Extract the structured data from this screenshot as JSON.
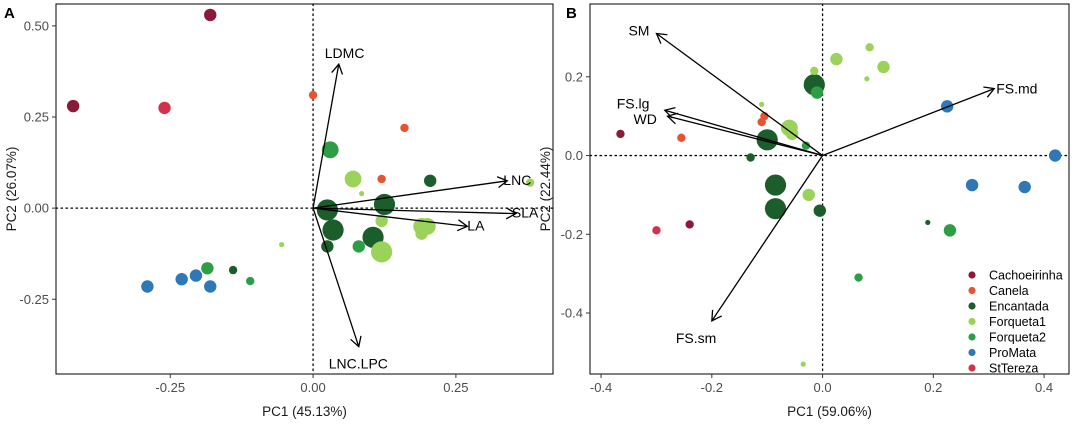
{
  "colors": {
    "Cachoeirinha": "#8B1A3A",
    "Canela": "#E8542F",
    "Encantada": "#1B5E2B",
    "Forqueta1": "#9BD35A",
    "Forqueta2": "#2E9E45",
    "ProMata": "#2E78B8",
    "StTereza": "#D2334A"
  },
  "chart_data": [
    {
      "type": "scatter",
      "panel_label": "A",
      "xlabel": "PC1 (45.13%)",
      "ylabel": "PC2 (26.07%)",
      "xlim": [
        -0.45,
        0.42
      ],
      "ylim": [
        -0.455,
        0.56
      ],
      "xticks": [
        -0.25,
        0.0,
        0.25
      ],
      "xtick_labels": [
        "-0.25",
        "0.00",
        "0.25"
      ],
      "yticks": [
        -0.25,
        0.0,
        0.25,
        0.5
      ],
      "ytick_labels": [
        "-0.25",
        "0.00",
        "0.25",
        "0.50"
      ],
      "vectors": [
        {
          "label": "LDMC",
          "x": 0.045,
          "y": 0.395
        },
        {
          "label": "LNC",
          "x": 0.34,
          "y": 0.075
        },
        {
          "label": "SLA",
          "x": 0.355,
          "y": -0.015
        },
        {
          "label": "LA",
          "x": 0.27,
          "y": -0.05
        },
        {
          "label": "LNC.LPC",
          "x": 0.08,
          "y": -0.38
        }
      ],
      "points": [
        {
          "site": "Cachoeirinha",
          "x": -0.18,
          "y": 0.53,
          "size": 3
        },
        {
          "site": "Cachoeirinha",
          "x": -0.42,
          "y": 0.28,
          "size": 3
        },
        {
          "site": "StTereza",
          "x": -0.26,
          "y": 0.275,
          "size": 3
        },
        {
          "site": "Canela",
          "x": 0.0,
          "y": 0.31,
          "size": 2
        },
        {
          "site": "Canela",
          "x": 0.16,
          "y": 0.22,
          "size": 2
        },
        {
          "site": "Canela",
          "x": 0.12,
          "y": 0.08,
          "size": 2
        },
        {
          "site": "Forqueta2",
          "x": 0.03,
          "y": 0.16,
          "size": 4
        },
        {
          "site": "Forqueta1",
          "x": 0.07,
          "y": 0.08,
          "size": 4
        },
        {
          "site": "Forqueta1",
          "x": 0.085,
          "y": 0.04,
          "size": 1
        },
        {
          "site": "Encantada",
          "x": 0.205,
          "y": 0.075,
          "size": 3
        },
        {
          "site": "Forqueta1",
          "x": 0.38,
          "y": 0.07,
          "size": 2
        },
        {
          "site": "Encantada",
          "x": 0.025,
          "y": -0.005,
          "size": 5
        },
        {
          "site": "Encantada",
          "x": 0.125,
          "y": 0.01,
          "size": 5
        },
        {
          "site": "Forqueta1",
          "x": 0.12,
          "y": -0.035,
          "size": 3
        },
        {
          "site": "Forqueta1",
          "x": 0.19,
          "y": -0.05,
          "size": 4
        },
        {
          "site": "Forqueta1",
          "x": 0.2,
          "y": -0.05,
          "size": 4
        },
        {
          "site": "Forqueta1",
          "x": 0.19,
          "y": -0.07,
          "size": 3
        },
        {
          "site": "Encantada",
          "x": 0.035,
          "y": -0.06,
          "size": 5
        },
        {
          "site": "Encantada",
          "x": 0.105,
          "y": -0.08,
          "size": 5
        },
        {
          "site": "Encantada",
          "x": 0.025,
          "y": -0.105,
          "size": 3
        },
        {
          "site": "Forqueta2",
          "x": 0.08,
          "y": -0.105,
          "size": 3
        },
        {
          "site": "Forqueta1",
          "x": 0.12,
          "y": -0.12,
          "size": 5
        },
        {
          "site": "Forqueta1",
          "x": -0.055,
          "y": -0.1,
          "size": 1
        },
        {
          "site": "Forqueta2",
          "x": -0.185,
          "y": -0.165,
          "size": 3
        },
        {
          "site": "Encantada",
          "x": -0.14,
          "y": -0.17,
          "size": 2
        },
        {
          "site": "Forqueta2",
          "x": -0.11,
          "y": -0.2,
          "size": 2
        },
        {
          "site": "ProMata",
          "x": -0.23,
          "y": -0.195,
          "size": 3
        },
        {
          "site": "ProMata",
          "x": -0.205,
          "y": -0.185,
          "size": 3
        },
        {
          "site": "ProMata",
          "x": -0.18,
          "y": -0.215,
          "size": 3
        },
        {
          "site": "ProMata",
          "x": -0.29,
          "y": -0.215,
          "size": 3
        }
      ]
    },
    {
      "type": "scatter",
      "panel_label": "B",
      "xlabel": "PC1 (59.06%)",
      "ylabel": "PC2 (22.44%)",
      "xlim": [
        -0.42,
        0.445
      ],
      "ylim": [
        -0.555,
        0.385
      ],
      "xticks": [
        -0.4,
        -0.2,
        0.0,
        0.2,
        0.4
      ],
      "xtick_labels": [
        "-0.4",
        "-0.2",
        "0.0",
        "0.2",
        "0.4"
      ],
      "yticks": [
        -0.4,
        -0.2,
        0.0,
        0.2
      ],
      "ytick_labels": [
        "-0.4",
        "-0.2",
        "0.0",
        "0.2"
      ],
      "vectors": [
        {
          "label": "SM",
          "x": -0.3,
          "y": 0.31
        },
        {
          "label": "FS.md",
          "x": 0.31,
          "y": 0.17
        },
        {
          "label": "FS.lg",
          "x": -0.285,
          "y": 0.115
        },
        {
          "label": "WD",
          "x": -0.28,
          "y": 0.1
        },
        {
          "label": "FS.sm",
          "x": -0.2,
          "y": -0.42
        }
      ],
      "legend": {
        "position": "bottom-right",
        "entries": [
          "Cachoeirinha",
          "Canela",
          "Encantada",
          "Forqueta1",
          "Forqueta2",
          "ProMata",
          "StTereza"
        ]
      },
      "points": [
        {
          "site": "Forqueta1",
          "x": -0.015,
          "y": 0.215,
          "size": 2
        },
        {
          "site": "Forqueta1",
          "x": 0.025,
          "y": 0.245,
          "size": 3
        },
        {
          "site": "Forqueta1",
          "x": 0.085,
          "y": 0.275,
          "size": 2
        },
        {
          "site": "Forqueta1",
          "x": 0.11,
          "y": 0.225,
          "size": 3
        },
        {
          "site": "Forqueta1",
          "x": 0.08,
          "y": 0.195,
          "size": 1
        },
        {
          "site": "Encantada",
          "x": -0.015,
          "y": 0.18,
          "size": 5
        },
        {
          "site": "Forqueta2",
          "x": -0.01,
          "y": 0.16,
          "size": 3
        },
        {
          "site": "ProMata",
          "x": 0.225,
          "y": 0.125,
          "size": 3
        },
        {
          "site": "ProMata",
          "x": 0.42,
          "y": 0.0,
          "size": 3
        },
        {
          "site": "ProMata",
          "x": 0.27,
          "y": -0.075,
          "size": 3
        },
        {
          "site": "ProMata",
          "x": 0.365,
          "y": -0.08,
          "size": 3
        },
        {
          "site": "Forqueta1",
          "x": -0.11,
          "y": 0.13,
          "size": 1
        },
        {
          "site": "Canela",
          "x": -0.105,
          "y": 0.1,
          "size": 2
        },
        {
          "site": "Canela",
          "x": -0.11,
          "y": 0.085,
          "size": 2
        },
        {
          "site": "Forqueta1",
          "x": -0.06,
          "y": 0.07,
          "size": 4
        },
        {
          "site": "Forqueta1",
          "x": -0.055,
          "y": 0.055,
          "size": 3
        },
        {
          "site": "Encantada",
          "x": -0.1,
          "y": 0.04,
          "size": 5
        },
        {
          "site": "Forqueta2",
          "x": -0.03,
          "y": 0.025,
          "size": 2
        },
        {
          "site": "Encantada",
          "x": -0.13,
          "y": -0.005,
          "size": 2
        },
        {
          "site": "Cachoeirinha",
          "x": -0.365,
          "y": 0.055,
          "size": 2
        },
        {
          "site": "Canela",
          "x": -0.255,
          "y": 0.045,
          "size": 2
        },
        {
          "site": "Encantada",
          "x": -0.085,
          "y": -0.075,
          "size": 5
        },
        {
          "site": "Forqueta1",
          "x": -0.025,
          "y": -0.1,
          "size": 3
        },
        {
          "site": "Encantada",
          "x": -0.085,
          "y": -0.135,
          "size": 5
        },
        {
          "site": "Encantada",
          "x": -0.005,
          "y": -0.14,
          "size": 3
        },
        {
          "site": "Encantada",
          "x": 0.19,
          "y": -0.17,
          "size": 1
        },
        {
          "site": "Forqueta2",
          "x": 0.23,
          "y": -0.19,
          "size": 3
        },
        {
          "site": "Cachoeirinha",
          "x": -0.24,
          "y": -0.175,
          "size": 2
        },
        {
          "site": "StTereza",
          "x": -0.3,
          "y": -0.19,
          "size": 2
        },
        {
          "site": "Forqueta2",
          "x": 0.065,
          "y": -0.31,
          "size": 2
        },
        {
          "site": "Forqueta1",
          "x": -0.035,
          "y": -0.53,
          "size": 1
        }
      ]
    }
  ]
}
